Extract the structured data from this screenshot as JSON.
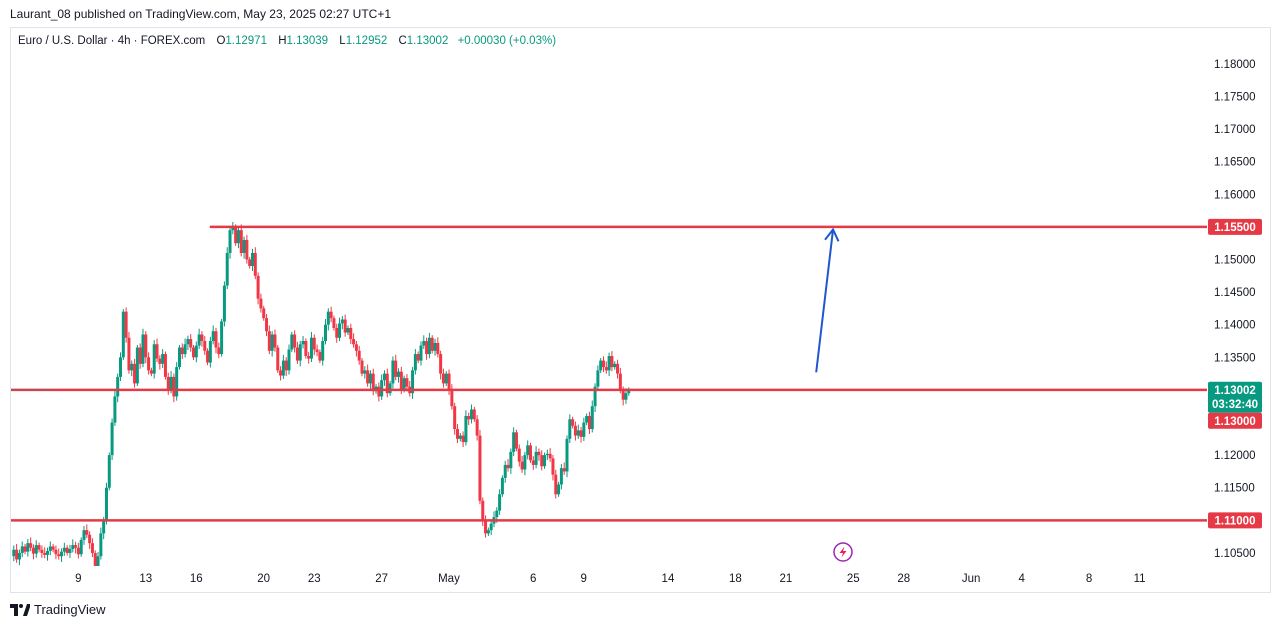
{
  "caption": "Laurant_08 published on TradingView.com, May 23, 2025 02:27 UTC+1",
  "legend": {
    "symbol": "Euro / U.S. Dollar · 4h · FOREX.com",
    "open_label": "O",
    "open": "1.12971",
    "high_label": "H",
    "high": "1.13039",
    "low_label": "L",
    "low": "1.12952",
    "close_label": "C",
    "close": "1.13002",
    "change": "+0.00030 (+0.03%)"
  },
  "footer": {
    "brand": "TradingView",
    "logo_icon": "tradingview-logo-icon"
  },
  "colors": {
    "up": "#089981",
    "down": "#f23645",
    "level": "#e53945",
    "arrow": "#1e56d0",
    "grid_text": "#131722"
  },
  "chart_data": {
    "type": "candlestick",
    "symbol": "EURUSD",
    "timeframe": "4h",
    "ylim": [
      1.103,
      1.1855
    ],
    "y_ticks": [
      1.18,
      1.175,
      1.17,
      1.165,
      1.16,
      1.155,
      1.15,
      1.145,
      1.14,
      1.135,
      1.13,
      1.125,
      1.12,
      1.115,
      1.11,
      1.105
    ],
    "y_tick_labels": [
      "1.18000",
      "1.17500",
      "1.17000",
      "1.16500",
      "1.16000",
      "1.15500",
      "1.15000",
      "1.14500",
      "1.14000",
      "1.13500",
      "1.13000",
      "1.12500",
      "1.12000",
      "1.11500",
      "1.11000",
      "1.10500"
    ],
    "x_ticks": [
      {
        "label": "9",
        "day": 9
      },
      {
        "label": "13",
        "day": 13
      },
      {
        "label": "16",
        "day": 16
      },
      {
        "label": "20",
        "day": 20
      },
      {
        "label": "23",
        "day": 23
      },
      {
        "label": "27",
        "day": 27
      },
      {
        "label": "May",
        "day": 31
      },
      {
        "label": "6",
        "day": 36
      },
      {
        "label": "9",
        "day": 39
      },
      {
        "label": "14",
        "day": 44
      },
      {
        "label": "18",
        "day": 48
      },
      {
        "label": "21",
        "day": 51
      },
      {
        "label": "25",
        "day": 55
      },
      {
        "label": "28",
        "day": 58
      },
      {
        "label": "Jun",
        "day": 62
      },
      {
        "label": "4",
        "day": 65
      },
      {
        "label": "8",
        "day": 69
      },
      {
        "label": "11",
        "day": 72
      }
    ],
    "xlim_days": [
      5.0,
      76.0
    ],
    "candles_day_start": 5.0,
    "candle_step_days": 0.1667,
    "closes": [
      1.1045,
      1.1055,
      1.104,
      1.105,
      1.106,
      1.1052,
      1.1065,
      1.1058,
      1.1049,
      1.1062,
      1.1055,
      1.105,
      1.1047,
      1.1053,
      1.106,
      1.1055,
      1.1048,
      1.1045,
      1.1052,
      1.1058,
      1.105,
      1.1056,
      1.1062,
      1.1058,
      1.1048,
      1.107,
      1.1085,
      1.1078,
      1.1065,
      1.105,
      1.103,
      1.1045,
      1.108,
      1.11,
      1.115,
      1.12,
      1.125,
      1.129,
      1.132,
      1.135,
      1.142,
      1.138,
      1.133,
      1.134,
      1.131,
      1.1365,
      1.134,
      1.1385,
      1.135,
      1.133,
      1.1325,
      1.137,
      1.1348,
      1.134,
      1.1355,
      1.132,
      1.13,
      1.132,
      1.129,
      1.1335,
      1.1365,
      1.1355,
      1.137,
      1.1378,
      1.1365,
      1.135,
      1.1368,
      1.1385,
      1.1375,
      1.136,
      1.1342,
      1.1375,
      1.139,
      1.1365,
      1.1355,
      1.1405,
      1.146,
      1.151,
      1.1545,
      1.155,
      1.1525,
      1.1545,
      1.151,
      1.153,
      1.15,
      1.149,
      1.151,
      1.1475,
      1.144,
      1.1425,
      1.141,
      1.139,
      1.136,
      1.1385,
      1.1365,
      1.133,
      1.1322,
      1.1345,
      1.133,
      1.1362,
      1.1385,
      1.1365,
      1.1345,
      1.137,
      1.1375,
      1.1352,
      1.1348,
      1.138,
      1.1362,
      1.1358,
      1.1345,
      1.1375,
      1.14,
      1.142,
      1.141,
      1.1395,
      1.138,
      1.1402,
      1.1408,
      1.1388,
      1.1395,
      1.1378,
      1.137,
      1.136,
      1.1345,
      1.1325,
      1.133,
      1.131,
      1.1325,
      1.1298,
      1.1305,
      1.129,
      1.1315,
      1.1325,
      1.1295,
      1.131,
      1.1345,
      1.132,
      1.1328,
      1.13,
      1.1318,
      1.1305,
      1.1295,
      1.133,
      1.1355,
      1.1345,
      1.1368,
      1.1375,
      1.1355,
      1.138,
      1.136,
      1.1372,
      1.1355,
      1.1325,
      1.131,
      1.1325,
      1.13,
      1.1275,
      1.124,
      1.1225,
      1.123,
      1.122,
      1.126,
      1.1255,
      1.127,
      1.1255,
      1.123,
      1.113,
      1.11,
      1.108,
      1.1085,
      1.1095,
      1.1105,
      1.1115,
      1.114,
      1.1165,
      1.1185,
      1.118,
      1.1205,
      1.1235,
      1.121,
      1.119,
      1.1178,
      1.12,
      1.1215,
      1.1192,
      1.1185,
      1.1205,
      1.12,
      1.1183,
      1.12,
      1.1202,
      1.1195,
      1.117,
      1.114,
      1.1155,
      1.118,
      1.1175,
      1.1225,
      1.1255,
      1.1245,
      1.123,
      1.1238,
      1.1228,
      1.125,
      1.126,
      1.124,
      1.1275,
      1.1305,
      1.133,
      1.1345,
      1.1335,
      1.133,
      1.1352,
      1.1335,
      1.134,
      1.1325,
      1.13,
      1.1285,
      1.1295,
      1.13
    ]
  },
  "levels": [
    {
      "name": "resistance",
      "price": 1.155,
      "label": "1.15500",
      "x_start_day": 16.8
    },
    {
      "name": "mid",
      "price": 1.13,
      "label": "1.13000",
      "x_start_day": 5.0
    },
    {
      "name": "support",
      "price": 1.11,
      "label": "1.11000",
      "x_start_day": 5.0
    }
  ],
  "current_price": {
    "price": 1.13002,
    "label": "1.13002",
    "countdown": "03:32:40"
  },
  "projection": {
    "from_day": 52.8,
    "from_price": 1.1327,
    "to_day": 53.8,
    "to_price": 1.1546
  }
}
